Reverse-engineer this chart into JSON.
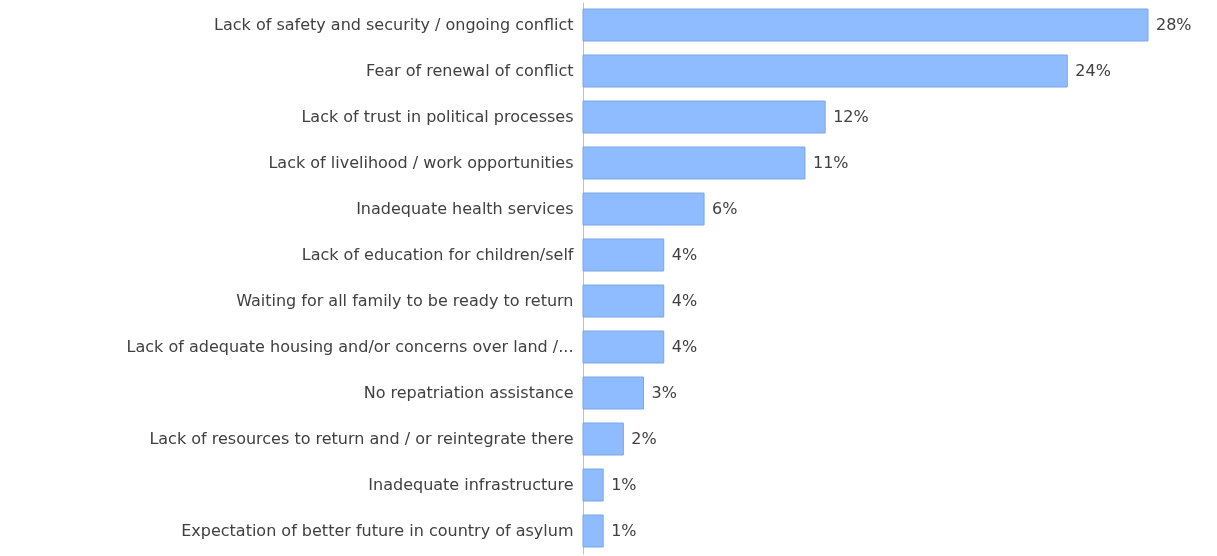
{
  "chart_data": {
    "type": "bar",
    "orientation": "horizontal",
    "categories": [
      "Lack of safety and security / ongoing conflict",
      "Fear of renewal of conflict",
      "Lack of trust in political processes",
      "Lack of livelihood / work opportunities",
      "Inadequate health services",
      "Lack of education for children/self",
      "Waiting for all family to be ready to return",
      "Lack of adequate housing and/or concerns over land /...",
      "No repatriation assistance",
      "Lack of resources to return and / or reintegrate there",
      "Inadequate infrastructure",
      "Expectation of better future in country of asylum"
    ],
    "values": [
      28,
      24,
      12,
      11,
      6,
      4,
      4,
      4,
      3,
      2,
      1,
      1
    ],
    "value_labels": [
      "28%",
      "24%",
      "12%",
      "11%",
      "6%",
      "4%",
      "4%",
      "4%",
      "3%",
      "2%",
      "1%",
      "1%"
    ],
    "color": "#8fbcff"
  }
}
